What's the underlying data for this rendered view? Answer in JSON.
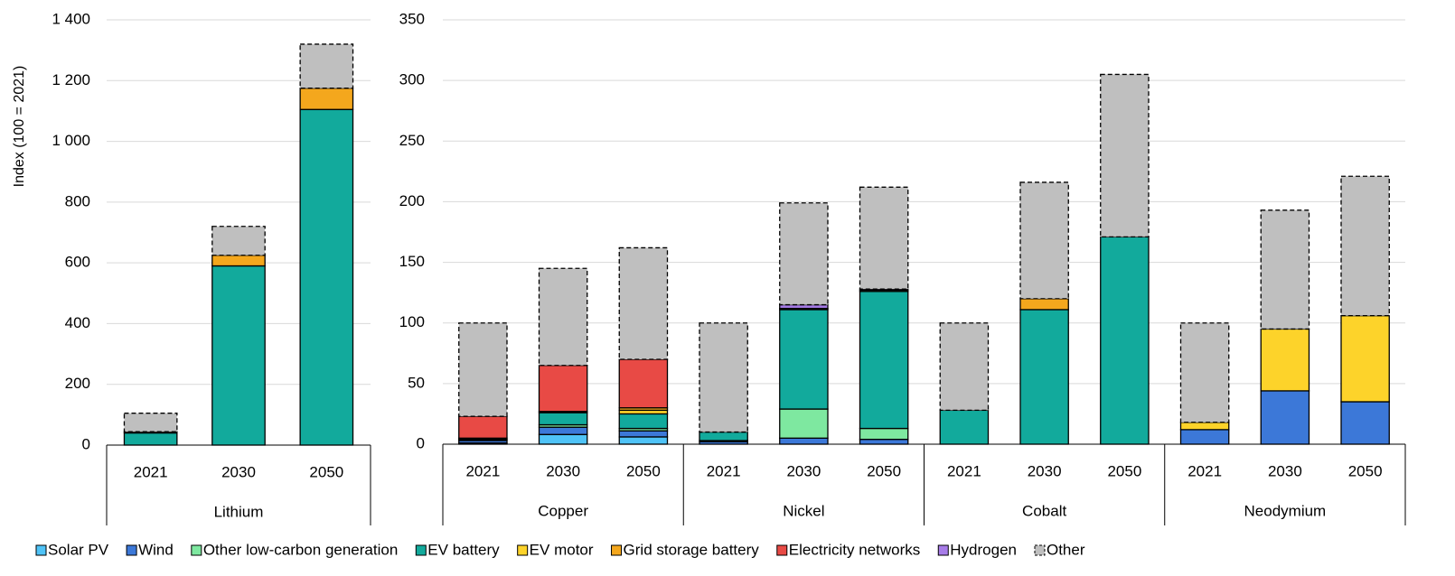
{
  "chart_data": [
    {
      "type": "bar",
      "stacked": true,
      "ylabel": "Index (100 = 2021)",
      "categories": [
        "2021",
        "2030",
        "2050"
      ],
      "groups": [
        "Lithium"
      ],
      "ylim": [
        0,
        1400
      ],
      "yticks": [
        0,
        200,
        400,
        600,
        800,
        {
          "value": 1000,
          "label": "1 000"
        },
        {
          "value": 1200,
          "label": "1 200"
        },
        {
          "value": 1400,
          "label": "1 400"
        }
      ],
      "grid": true,
      "series": [
        {
          "values": [
            0,
            0,
            0
          ]
        },
        {
          "values": [
            0,
            0,
            0
          ]
        },
        {
          "values": [
            0,
            0,
            0
          ]
        },
        {
          "values": [
            40,
            590,
            1105
          ]
        },
        {
          "values": [
            0,
            0,
            0
          ]
        },
        {
          "values": [
            4,
            35,
            70
          ]
        },
        {
          "values": [
            0,
            0,
            0
          ]
        },
        {
          "values": [
            0,
            0,
            0
          ]
        },
        {
          "values": [
            61,
            95,
            145
          ]
        }
      ]
    },
    {
      "type": "bar",
      "stacked": true,
      "categories": [
        "2021",
        "2030",
        "2050",
        "2021",
        "2030",
        "2050",
        "2021",
        "2030",
        "2050",
        "2021",
        "2030",
        "2050"
      ],
      "groups": [
        "Copper",
        "Nickel",
        "Cobalt",
        "Neodymium"
      ],
      "ylim": [
        0,
        350
      ],
      "yticks": [
        0,
        50,
        100,
        150,
        200,
        250,
        300,
        350
      ],
      "grid": true,
      "series": [
        {
          "name": "Solar PV",
          "color": "#4fc3f7",
          "values": [
            1,
            8,
            6,
            0,
            0,
            0,
            0,
            0,
            0,
            0,
            0,
            0
          ]
        },
        {
          "name": "Wind",
          "color": "#3c78d8",
          "values": [
            2,
            6,
            5,
            2,
            5,
            4,
            0,
            0,
            0,
            12,
            44,
            35
          ]
        },
        {
          "name": "Other low-carbon generation",
          "color": "#7ee8a0",
          "values": [
            1,
            2,
            2,
            1,
            24,
            9,
            0,
            0,
            0,
            0,
            0,
            0
          ]
        },
        {
          "name": "EV battery",
          "color": "#12aa9c",
          "values": [
            1,
            10,
            12,
            7,
            82,
            113,
            28,
            111,
            171,
            0,
            0,
            0
          ]
        },
        {
          "name": "EV motor",
          "color": "#fdd32a",
          "values": [
            0,
            0,
            3,
            0,
            0,
            0,
            0,
            0,
            0,
            6,
            51,
            71
          ]
        },
        {
          "name": "Grid storage battery",
          "color": "#f4a71d",
          "values": [
            0,
            1,
            2,
            0,
            1,
            1,
            0,
            9,
            0,
            0,
            0,
            0
          ]
        },
        {
          "name": "Electricity networks",
          "color": "#e84a45",
          "values": [
            18,
            38,
            40,
            0,
            0,
            0,
            0,
            0,
            0,
            0,
            0,
            0
          ]
        },
        {
          "name": "Hydrogen",
          "color": "#a77ce8",
          "values": [
            0,
            0,
            0,
            0,
            3,
            1,
            0,
            0,
            0,
            0,
            0,
            0
          ]
        },
        {
          "name": "Other",
          "color": "#bfbfbf",
          "dashed": true,
          "values": [
            77,
            80,
            92,
            90,
            84,
            84,
            72,
            96,
            134,
            82,
            98,
            115
          ]
        }
      ]
    }
  ]
}
